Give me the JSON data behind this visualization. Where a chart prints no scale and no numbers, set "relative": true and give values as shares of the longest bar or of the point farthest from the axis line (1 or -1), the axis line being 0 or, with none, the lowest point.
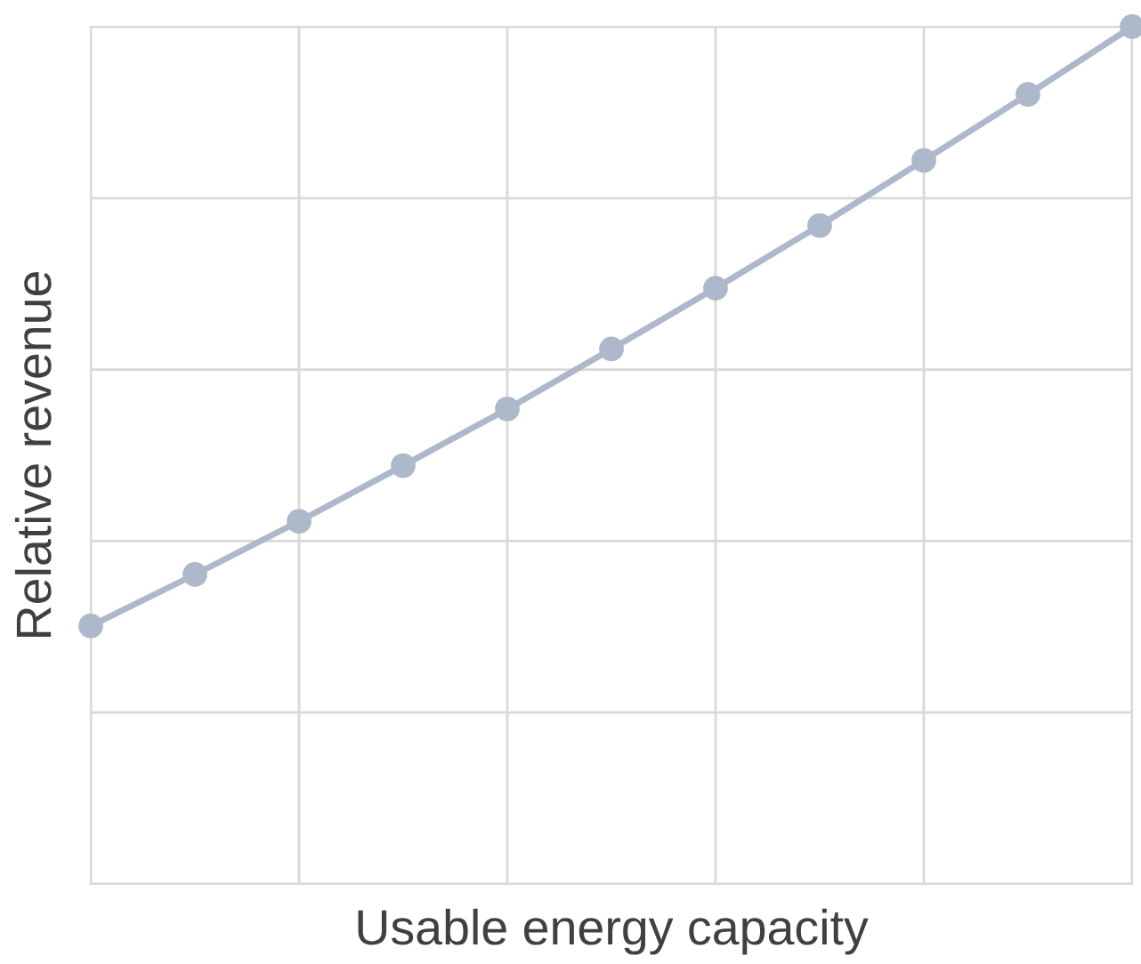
{
  "chart_data": {
    "type": "line",
    "relative": true,
    "xlabel": "Usable energy capacity",
    "ylabel": "Relative revenue",
    "categories": [
      null,
      null,
      null,
      null,
      null,
      null,
      null,
      null,
      null,
      null,
      null
    ],
    "series": [
      {
        "color": "#adb9ca",
        "values": [
          0.301,
          0.361,
          0.423,
          0.488,
          0.554,
          0.624,
          0.695,
          0.768,
          0.844,
          0.921,
          1.0
        ]
      }
    ],
    "grid": true,
    "marker": "circle",
    "line_style": "solid",
    "legend": false,
    "tick_labels": false
  }
}
